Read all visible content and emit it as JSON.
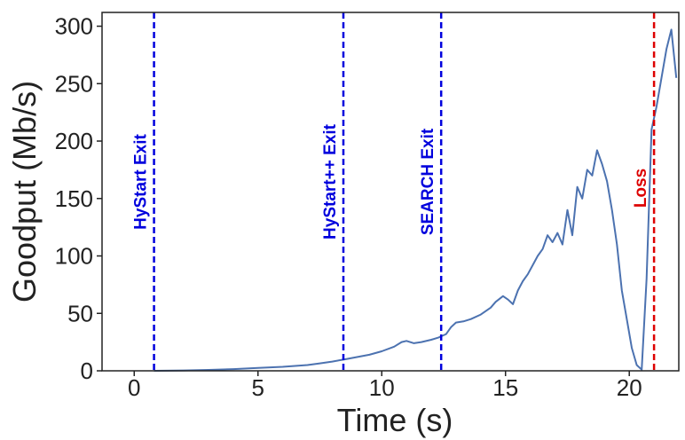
{
  "chart_data": {
    "type": "line",
    "title": "",
    "xlabel": "Time (s)",
    "ylabel": "Goodput (Mb/s)",
    "xlim": [
      -1.3,
      22
    ],
    "ylim": [
      0,
      312
    ],
    "x_ticks": [
      0,
      5,
      10,
      15,
      20
    ],
    "y_ticks": [
      0,
      50,
      100,
      150,
      200,
      250,
      300
    ],
    "grid": false,
    "line_color": "#4c72b0",
    "series": [
      {
        "x": [
          0.8,
          2,
          3,
          4,
          5,
          6,
          7,
          7.5,
          8,
          8.5,
          9,
          9.5,
          10,
          10.5,
          10.8,
          11,
          11.3,
          11.6,
          12,
          12.3,
          12.6,
          12.8,
          13,
          13.3,
          13.6,
          14,
          14.2,
          14.4,
          14.6,
          14.9,
          15.1,
          15.3,
          15.5,
          15.7,
          15.9,
          16.1,
          16.3,
          16.5,
          16.7,
          16.9,
          17.1,
          17.3,
          17.5,
          17.7,
          17.9,
          18.1,
          18.3,
          18.5,
          18.7,
          18.9,
          19.1,
          19.3,
          19.5,
          19.7,
          19.9,
          20.1,
          20.3,
          20.5,
          20.7,
          20.9,
          21.1,
          21.3,
          21.5,
          21.7,
          21.9
        ],
        "y": [
          0,
          0.3,
          0.8,
          1.5,
          2.5,
          3.5,
          5,
          6.5,
          8,
          10,
          12,
          14,
          17,
          21,
          25,
          26,
          24,
          25,
          27,
          29,
          32,
          38,
          42,
          43,
          45,
          49,
          52,
          55,
          60,
          65,
          62,
          58,
          70,
          78,
          84,
          92,
          100,
          106,
          118,
          112,
          120,
          110,
          140,
          118,
          160,
          150,
          175,
          170,
          192,
          180,
          165,
          140,
          110,
          70,
          45,
          20,
          5,
          1,
          80,
          210,
          230,
          255,
          280,
          297,
          255
        ]
      }
    ],
    "annotations": [
      {
        "x": 0.8,
        "label": "HyStart Exit",
        "color": "#0000dd"
      },
      {
        "x": 8.45,
        "label": "HyStart++ Exit",
        "color": "#0000dd"
      },
      {
        "x": 12.4,
        "label": "SEARCH Exit",
        "color": "#0000dd"
      },
      {
        "x": 21.0,
        "label": "Loss",
        "color": "#dd0000"
      }
    ]
  }
}
